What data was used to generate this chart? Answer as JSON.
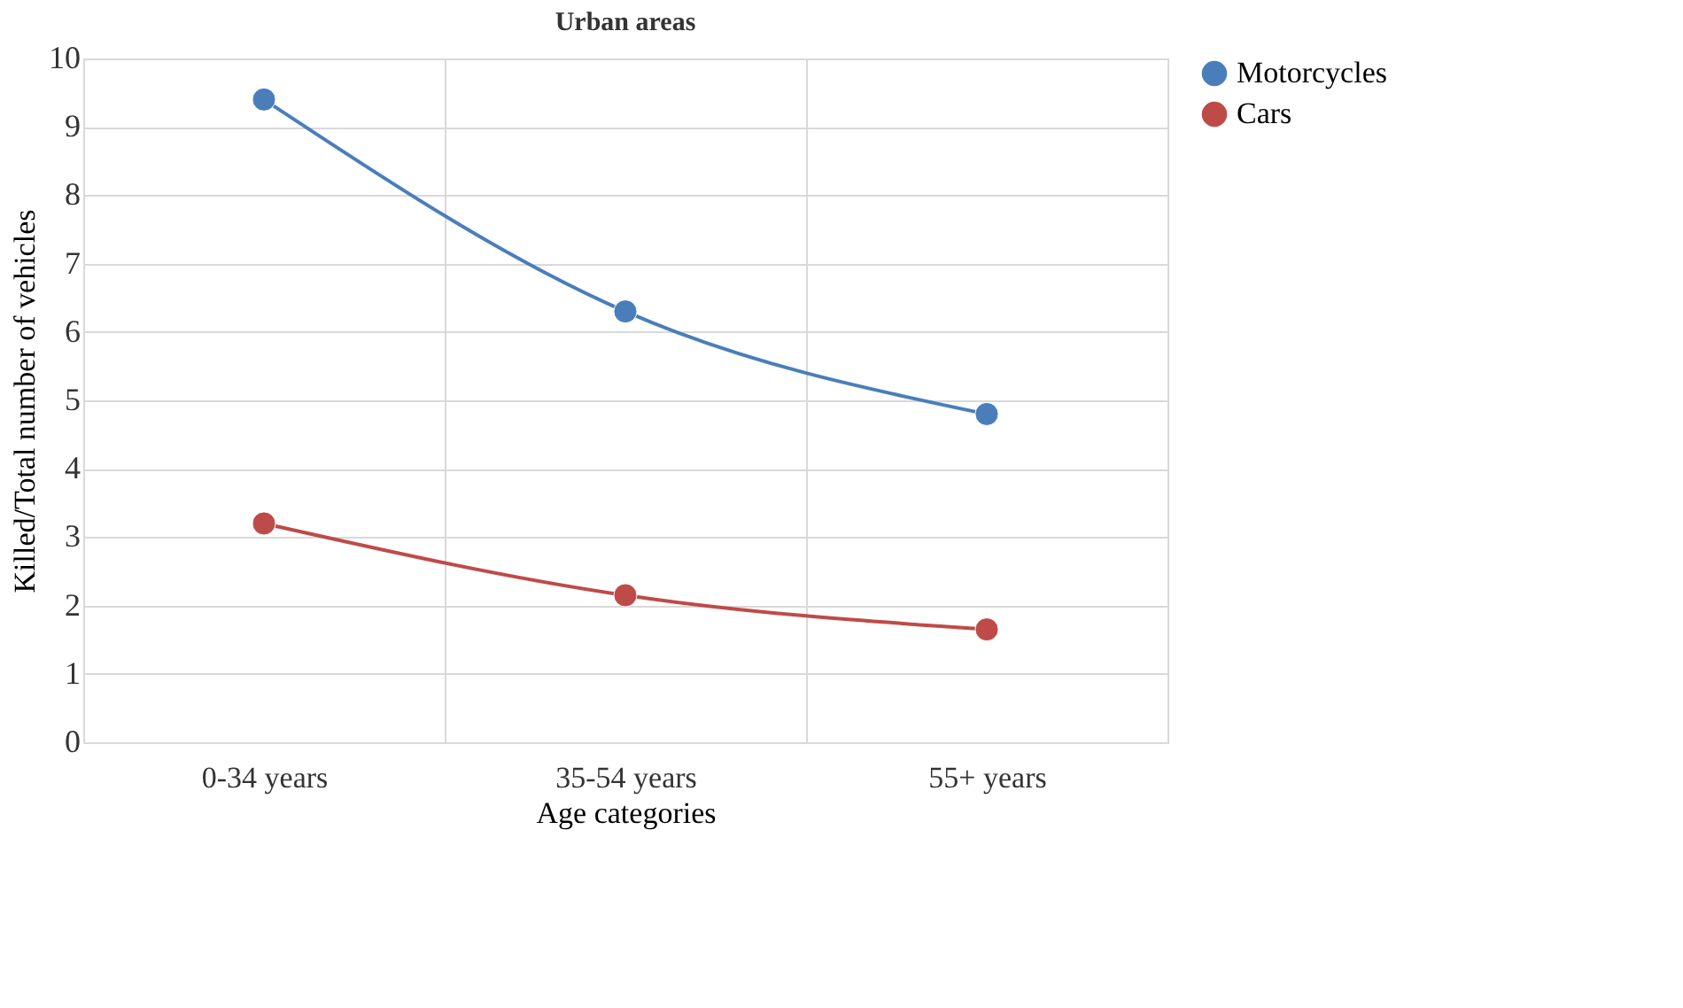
{
  "chart_data": {
    "type": "line",
    "title": "Urban areas",
    "xlabel": "Age categories",
    "ylabel": "Killed/Total number of vehicles",
    "categories": [
      "0-34 years",
      "35-54 years",
      "55+ years"
    ],
    "series": [
      {
        "name": "Motorcycles",
        "color": "#4a7ebb",
        "values": [
          9.4,
          6.3,
          4.8
        ]
      },
      {
        "name": "Cars",
        "color": "#be4b48",
        "values": [
          3.2,
          2.15,
          1.65
        ]
      }
    ],
    "ylim": [
      0,
      10
    ],
    "yticks": [
      0,
      1,
      2,
      3,
      4,
      5,
      6,
      7,
      8,
      9,
      10
    ],
    "grid": true,
    "legend": "right",
    "marker": "circle",
    "line_style": "solid"
  }
}
